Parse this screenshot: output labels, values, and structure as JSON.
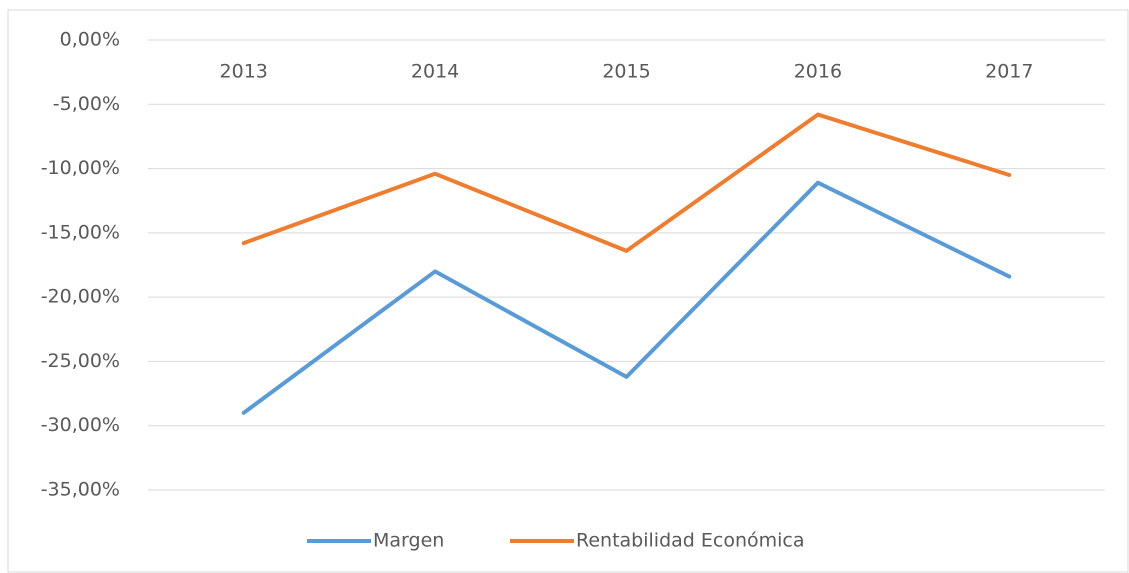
{
  "chart_data": {
    "type": "line",
    "categories": [
      "2013",
      "2014",
      "2015",
      "2016",
      "2017"
    ],
    "series": [
      {
        "name": "Margen",
        "color": "#5b9bd5",
        "values": [
          -29.0,
          -18.0,
          -26.2,
          -11.1,
          -18.4
        ]
      },
      {
        "name": "Rentabilidad Económica",
        "color": "#ed7d31",
        "values": [
          -15.8,
          -10.4,
          -16.4,
          -5.8,
          -10.5
        ]
      }
    ],
    "ylim": [
      -35,
      0
    ],
    "yticks": [
      {
        "value": 0,
        "label": "0,00%"
      },
      {
        "value": -5,
        "label": "-5,00%"
      },
      {
        "value": -10,
        "label": "-10,00%"
      },
      {
        "value": -15,
        "label": "-15,00%"
      },
      {
        "value": -20,
        "label": "-20,00%"
      },
      {
        "value": -25,
        "label": "-25,00%"
      },
      {
        "value": -30,
        "label": "-30,00%"
      },
      {
        "value": -35,
        "label": "-35,00%"
      }
    ],
    "grid": true,
    "legend": "bottom"
  }
}
